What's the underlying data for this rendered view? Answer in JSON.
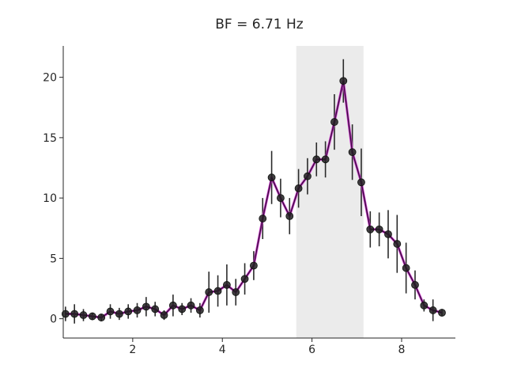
{
  "chart_data": {
    "type": "line",
    "title": "BF = 6.71 Hz",
    "xlabel": "",
    "ylabel": "",
    "xlim": [
      0.45,
      9.2
    ],
    "ylim": [
      -1.6,
      22.6
    ],
    "xticks": [
      2,
      4,
      6,
      8
    ],
    "yticks": [
      0,
      5,
      10,
      15,
      20
    ],
    "grid": false,
    "highlight_band": {
      "x_start": 5.65,
      "x_end": 7.15,
      "color": "#ebebeb"
    },
    "series": [
      {
        "line_color": "#cc33cc",
        "marker_color": "#1f1f1f",
        "x": [
          0.5,
          0.7,
          0.9,
          1.1,
          1.3,
          1.5,
          1.7,
          1.9,
          2.1,
          2.3,
          2.5,
          2.7,
          2.9,
          3.1,
          3.3,
          3.5,
          3.7,
          3.9,
          4.1,
          4.3,
          4.5,
          4.7,
          4.9,
          5.1,
          5.3,
          5.5,
          5.7,
          5.9,
          6.1,
          6.3,
          6.5,
          6.7,
          6.9,
          7.1,
          7.3,
          7.5,
          7.7,
          7.9,
          8.1,
          8.3,
          8.5,
          8.7,
          8.9
        ],
        "y": [
          0.4,
          0.4,
          0.3,
          0.2,
          0.1,
          0.6,
          0.4,
          0.6,
          0.7,
          1.0,
          0.8,
          0.3,
          1.1,
          0.8,
          1.1,
          0.7,
          2.2,
          2.3,
          2.8,
          2.2,
          3.3,
          4.4,
          8.3,
          11.7,
          10.0,
          8.5,
          10.8,
          11.8,
          13.2,
          13.2,
          16.3,
          19.7,
          13.8,
          11.3,
          7.4,
          7.4,
          7.0,
          6.2,
          4.2,
          2.8,
          1.1,
          0.7,
          0.5
        ],
        "err": [
          0.6,
          0.8,
          0.5,
          0.3,
          0.3,
          0.6,
          0.5,
          0.6,
          0.6,
          0.8,
          0.6,
          0.4,
          0.9,
          0.5,
          0.6,
          0.6,
          1.7,
          1.3,
          1.7,
          1.1,
          1.3,
          1.2,
          1.7,
          2.2,
          1.6,
          1.5,
          1.6,
          1.5,
          1.4,
          1.5,
          2.3,
          1.8,
          2.3,
          2.8,
          1.5,
          1.4,
          2.0,
          2.4,
          2.1,
          1.2,
          0.5,
          0.9,
          0.3
        ]
      }
    ]
  }
}
